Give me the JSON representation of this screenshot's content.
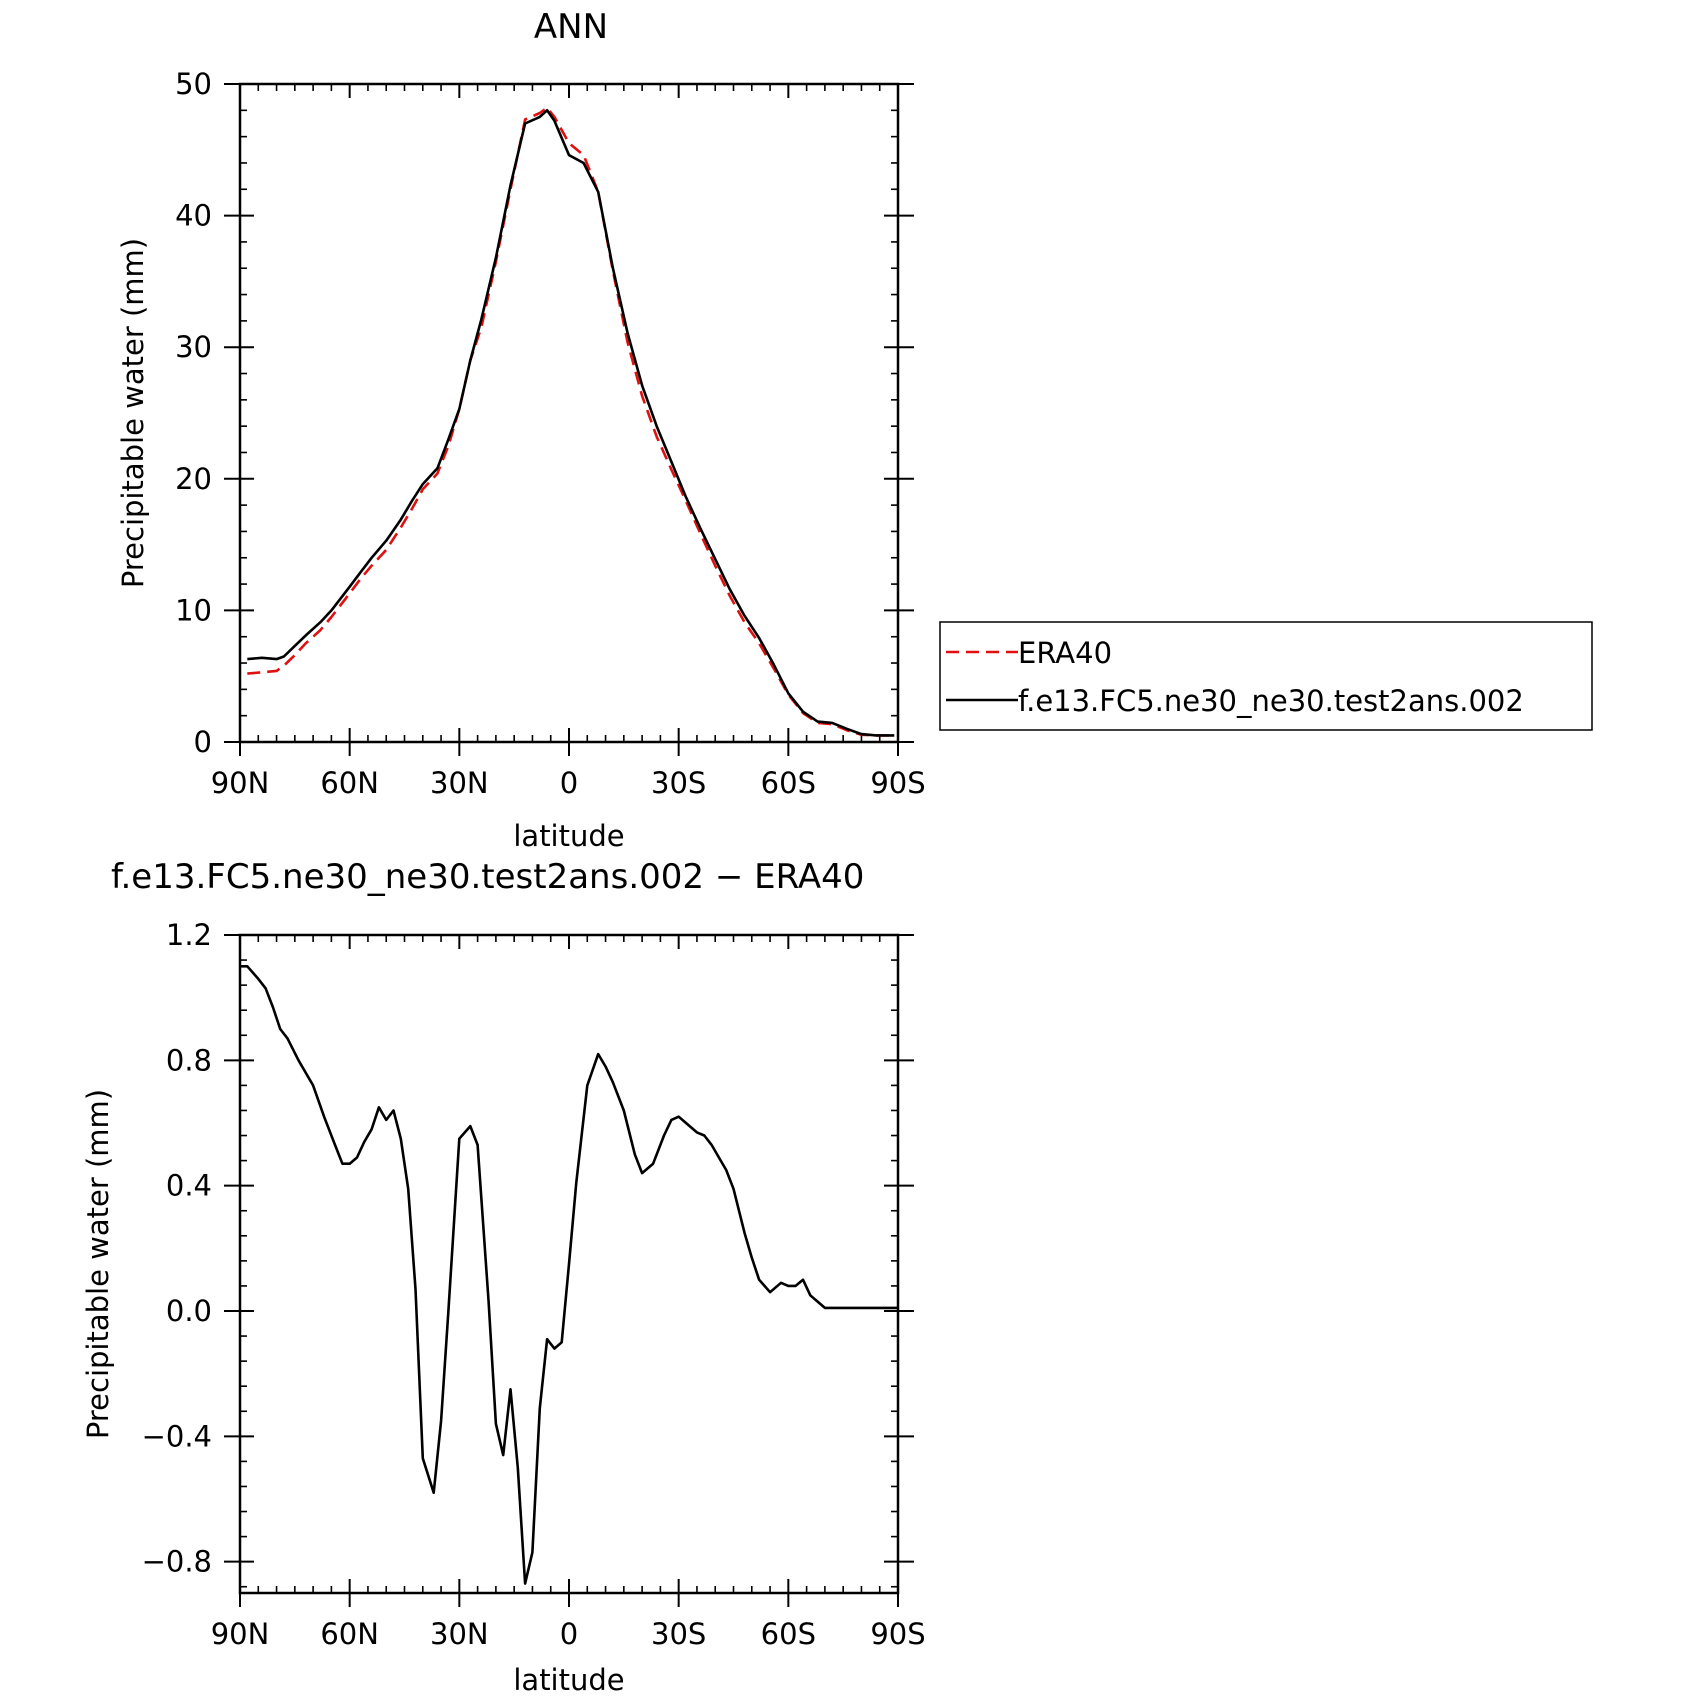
{
  "colors": {
    "era40": "#e01010",
    "model": "#000000",
    "diff": "#000000"
  },
  "chart_data": [
    {
      "type": "line",
      "title": "ANN",
      "xlabel": "latitude",
      "ylabel": "Precipitable water (mm)",
      "xlim": [
        90,
        -90
      ],
      "ylim": [
        0,
        50
      ],
      "xticks": [
        90,
        60,
        30,
        0,
        -30,
        -60,
        -90
      ],
      "xticklabels": [
        "90N",
        "60N",
        "30N",
        "0",
        "30S",
        "60S",
        "90S"
      ],
      "yticks": [
        0,
        10,
        20,
        30,
        40,
        50
      ],
      "yticklabels": [
        "0",
        "10",
        "20",
        "30",
        "40",
        "50"
      ],
      "legend": {
        "placement": "right",
        "entries": [
          "ERA40",
          "f.e13.FC5.ne30_ne30.test2ans.002"
        ]
      },
      "x": [
        88,
        84,
        80,
        78,
        75,
        72,
        68,
        65,
        60,
        57,
        54,
        50,
        46,
        43,
        40,
        36,
        33,
        30,
        27,
        24,
        20,
        16,
        12,
        8,
        6,
        4,
        0,
        -4,
        -8,
        -12,
        -16,
        -20,
        -24,
        -28,
        -32,
        -36,
        -40,
        -44,
        -48,
        -52,
        -56,
        -60,
        -64,
        -68,
        -72,
        -76,
        -80,
        -84,
        -87,
        -89
      ],
      "series": [
        {
          "name": "ERA40",
          "style": "dashed",
          "values": [
            5.2,
            5.3,
            5.4,
            5.8,
            6.6,
            7.5,
            8.5,
            9.5,
            11.3,
            12.4,
            13.4,
            14.6,
            16.3,
            17.7,
            19.2,
            20.4,
            22.5,
            25.3,
            29.0,
            31.5,
            36.5,
            42.0,
            47.3,
            47.8,
            48.2,
            47.5,
            45.5,
            44.6,
            41.8,
            35.8,
            30.4,
            26.3,
            23.2,
            20.7,
            18.3,
            15.8,
            13.4,
            11.1,
            9.1,
            7.5,
            5.6,
            3.6,
            2.2,
            1.45,
            1.35,
            0.9,
            0.55,
            0.5,
            0.5,
            0.5
          ]
        },
        {
          "name": "f.e13.FC5.ne30_ne30.test2ans.002",
          "style": "solid",
          "values": [
            6.3,
            6.4,
            6.3,
            6.5,
            7.3,
            8.1,
            9.1,
            10.0,
            11.8,
            12.9,
            14.0,
            15.3,
            16.9,
            18.3,
            19.6,
            20.8,
            23.0,
            25.3,
            29.0,
            32.1,
            36.8,
            42.3,
            47.0,
            47.5,
            48.0,
            47.2,
            44.6,
            44.0,
            41.8,
            36.0,
            31.1,
            27.1,
            24.0,
            21.3,
            18.6,
            16.2,
            13.9,
            11.6,
            9.6,
            7.9,
            5.9,
            3.7,
            2.3,
            1.55,
            1.45,
            1.0,
            0.6,
            0.5,
            0.5,
            0.5
          ]
        }
      ]
    },
    {
      "type": "line",
      "title": "f.e13.FC5.ne30_ne30.test2ans.002 − ERA40",
      "xlabel": "latitude",
      "ylabel": "Precipitable water (mm)",
      "xlim": [
        90,
        -90
      ],
      "ylim": [
        -0.9,
        1.2
      ],
      "xticks": [
        90,
        60,
        30,
        0,
        -30,
        -60,
        -90
      ],
      "xticklabels": [
        "90N",
        "60N",
        "30N",
        "0",
        "30S",
        "60S",
        "90S"
      ],
      "yticks": [
        -0.8,
        -0.4,
        0.0,
        0.4,
        0.8,
        1.2
      ],
      "yticklabels": [
        "−0.8",
        "−0.4",
        "0.0",
        "0.4",
        "0.8",
        "1.2"
      ],
      "x": [
        90,
        88,
        85,
        83,
        81,
        79,
        77,
        74,
        72,
        70,
        67,
        64,
        62,
        60,
        58,
        56,
        54,
        52,
        50,
        48,
        46,
        44,
        42,
        40,
        37,
        35,
        33,
        30,
        27,
        25,
        22,
        20,
        18,
        16,
        14,
        12,
        10,
        8,
        6,
        4,
        2,
        0,
        -2,
        -5,
        -8,
        -10,
        -12,
        -15,
        -18,
        -20,
        -23,
        -26,
        -28,
        -30,
        -32,
        -35,
        -37,
        -39,
        -41,
        -43,
        -45,
        -48,
        -50,
        -52,
        -55,
        -58,
        -60,
        -62,
        -64,
        -66,
        -68,
        -70,
        -72,
        -74,
        -76,
        -78,
        -80,
        -82,
        -84,
        -86,
        -88,
        -90
      ],
      "series": [
        {
          "name": "",
          "values": [
            1.1,
            1.1,
            1.06,
            1.03,
            0.97,
            0.9,
            0.87,
            0.8,
            0.76,
            0.72,
            0.62,
            0.53,
            0.47,
            0.47,
            0.49,
            0.54,
            0.58,
            0.65,
            0.61,
            0.64,
            0.55,
            0.39,
            0.07,
            -0.47,
            -0.58,
            -0.35,
            0.0,
            0.55,
            0.59,
            0.53,
            0.03,
            -0.36,
            -0.46,
            -0.25,
            -0.5,
            -0.87,
            -0.77,
            -0.31,
            -0.09,
            -0.12,
            -0.1,
            0.15,
            0.41,
            0.72,
            0.82,
            0.78,
            0.73,
            0.64,
            0.5,
            0.44,
            0.47,
            0.56,
            0.61,
            0.62,
            0.6,
            0.57,
            0.56,
            0.53,
            0.49,
            0.45,
            0.39,
            0.25,
            0.17,
            0.1,
            0.06,
            0.09,
            0.08,
            0.08,
            0.1,
            0.05,
            0.03,
            0.01,
            0.01,
            0.01,
            0.01,
            0.01,
            0.01,
            0.01,
            0.01,
            0.01,
            0.01,
            0.01
          ]
        }
      ]
    }
  ]
}
